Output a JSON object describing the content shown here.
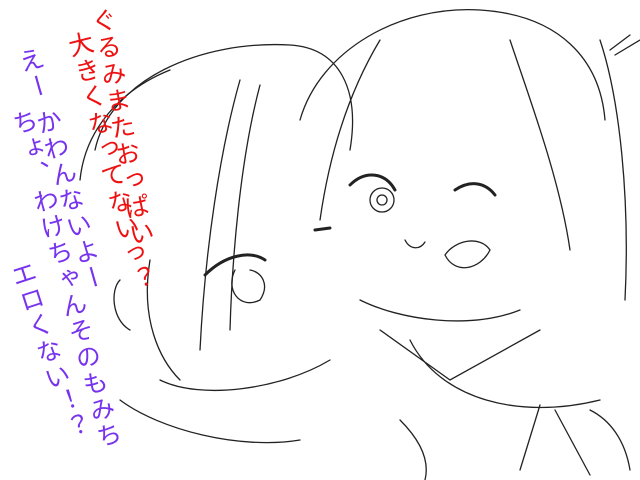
{
  "speech": {
    "red": [
      "ぐるみまたおっぱい",
      "大きくなってないっ？"
    ],
    "purple": [
      "えー かわんないよー",
      "ちょ、わけちゃんそのもみち",
      "エロくない！？"
    ]
  }
}
